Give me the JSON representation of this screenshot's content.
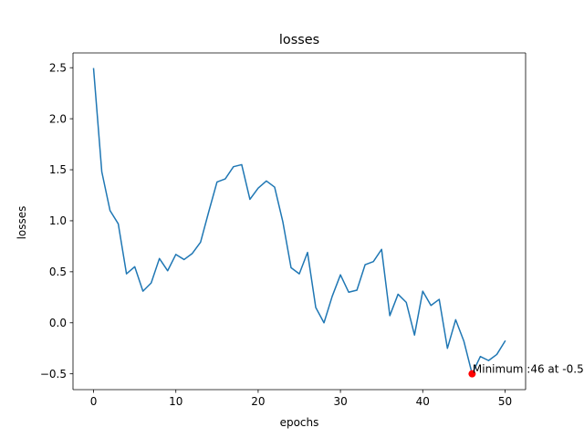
{
  "chart_data": {
    "type": "line",
    "title": "losses",
    "xlabel": "epochs",
    "ylabel": "losses",
    "xlim": [
      -2.5,
      52.5
    ],
    "ylim": [
      -0.655,
      2.645
    ],
    "xticks": [
      0,
      10,
      20,
      30,
      40,
      50
    ],
    "xtick_labels": [
      "0",
      "10",
      "20",
      "30",
      "40",
      "50"
    ],
    "yticks": [
      -0.5,
      0.0,
      0.5,
      1.0,
      1.5,
      2.0,
      2.5
    ],
    "ytick_labels": [
      "−0.5",
      "0.0",
      "0.5",
      "1.0",
      "1.5",
      "2.0",
      "2.5"
    ],
    "grid": false,
    "series": [
      {
        "color": "#1f77b4",
        "x": [
          0,
          1,
          2,
          3,
          4,
          5,
          6,
          7,
          8,
          9,
          10,
          11,
          12,
          13,
          14,
          15,
          16,
          17,
          18,
          19,
          20,
          21,
          22,
          23,
          24,
          25,
          26,
          27,
          28,
          29,
          30,
          31,
          32,
          33,
          34,
          35,
          36,
          37,
          38,
          39,
          40,
          41,
          42,
          43,
          44,
          45,
          46,
          47,
          48,
          49,
          50
        ],
        "y": [
          2.49,
          1.48,
          1.1,
          0.97,
          0.48,
          0.55,
          0.31,
          0.39,
          0.63,
          0.51,
          0.67,
          0.62,
          0.68,
          0.79,
          1.09,
          1.38,
          1.41,
          1.53,
          1.55,
          1.21,
          1.32,
          1.39,
          1.33,
          0.99,
          0.54,
          0.48,
          0.69,
          0.15,
          0.0,
          0.26,
          0.47,
          0.3,
          0.32,
          0.57,
          0.6,
          0.72,
          0.07,
          0.28,
          0.2,
          -0.12,
          0.31,
          0.17,
          0.23,
          -0.25,
          0.03,
          -0.18,
          -0.5,
          -0.33,
          -0.37,
          -0.31,
          -0.18
        ]
      }
    ],
    "annotation": {
      "text": "Minimum :46 at -0.5",
      "x": 46,
      "y": -0.5,
      "marker_color": "#ff0000"
    }
  }
}
